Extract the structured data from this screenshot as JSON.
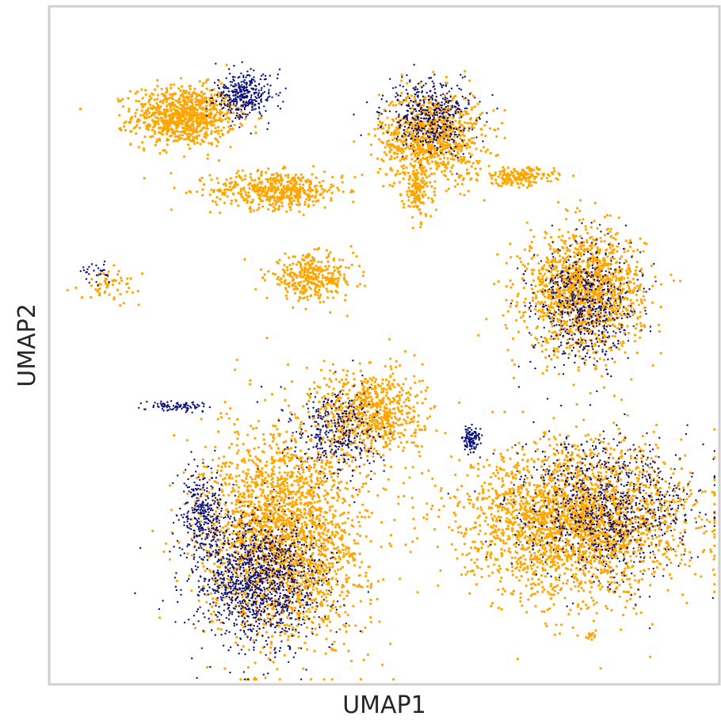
{
  "chart_data": {
    "type": "scatter",
    "title": "",
    "xlabel": "UMAP1",
    "ylabel": "UMAP2",
    "xticks": [],
    "yticks": [],
    "xlim": [
      0,
      100
    ],
    "ylim": [
      0,
      100
    ],
    "grid": false,
    "legend": "none",
    "series": [
      {
        "color": "#FFA500",
        "clusters": [
          {
            "id": "top-left-blob",
            "center": [
              20,
              84
            ],
            "spread": [
              7,
              4
            ],
            "weight": 900
          },
          {
            "id": "top-left-arm",
            "center": [
              34,
              73
            ],
            "spread": [
              9,
              2.5
            ],
            "weight": 500
          },
          {
            "id": "top-center-blob",
            "center": [
              57,
              81
            ],
            "spread": [
              7,
              6
            ],
            "weight": 900
          },
          {
            "id": "top-center-stem",
            "center": [
              55,
              73
            ],
            "spread": [
              2,
              4
            ],
            "weight": 150
          },
          {
            "id": "diagonal-streak",
            "center": [
              70,
              75
            ],
            "spread": [
              5,
              1.2
            ],
            "weight": 180
          },
          {
            "id": "middle-small",
            "center": [
              39,
              60
            ],
            "spread": [
              6,
              3
            ],
            "weight": 350
          },
          {
            "id": "right-middle",
            "center": [
              80,
              58
            ],
            "spread": [
              8,
              8
            ],
            "weight": 1400
          },
          {
            "id": "left-small",
            "center": [
              9,
              59
            ],
            "spread": [
              4,
              2
            ],
            "weight": 60
          },
          {
            "id": "lower-triangle",
            "center": [
              48,
              40
            ],
            "spread": [
              7,
              6
            ],
            "weight": 700
          },
          {
            "id": "lower-left-big",
            "center": [
              35,
              22
            ],
            "spread": [
              11,
              14
            ],
            "weight": 2400
          },
          {
            "id": "lower-right-big",
            "center": [
              79,
              24
            ],
            "spread": [
              15,
              10
            ],
            "weight": 2600
          },
          {
            "id": "bottom-dot",
            "center": [
              81,
              7
            ],
            "spread": [
              0.6,
              0.6
            ],
            "weight": 15
          }
        ]
      },
      {
        "color": "#0A0F7A",
        "clusters": [
          {
            "id": "top-left-blob",
            "center": [
              29,
              87
            ],
            "spread": [
              4,
              3
            ],
            "weight": 350
          },
          {
            "id": "top-center-blob",
            "center": [
              57,
              84
            ],
            "spread": [
              6,
              5
            ],
            "weight": 450
          },
          {
            "id": "right-middle",
            "center": [
              80,
              56
            ],
            "spread": [
              7,
              8
            ],
            "weight": 600
          },
          {
            "id": "left-small",
            "center": [
              7,
              61
            ],
            "spread": [
              2,
              1.5
            ],
            "weight": 30
          },
          {
            "id": "thin-streak",
            "center": [
              19,
              41
            ],
            "spread": [
              4,
              0.7
            ],
            "weight": 90
          },
          {
            "id": "lower-triangle",
            "center": [
              43,
              37
            ],
            "spread": [
              6,
              6
            ],
            "weight": 350
          },
          {
            "id": "small-blue-cluster",
            "center": [
              63,
              36
            ],
            "spread": [
              1.2,
              1.8
            ],
            "weight": 120
          },
          {
            "id": "lower-left-big",
            "center": [
              31,
              15
            ],
            "spread": [
              9,
              9
            ],
            "weight": 1300
          },
          {
            "id": "lower-left-edge",
            "center": [
              23,
              25
            ],
            "spread": [
              3,
              6
            ],
            "weight": 300
          },
          {
            "id": "lower-right-big",
            "center": [
              83,
              26
            ],
            "spread": [
              12,
              9
            ],
            "weight": 900
          }
        ]
      }
    ]
  }
}
